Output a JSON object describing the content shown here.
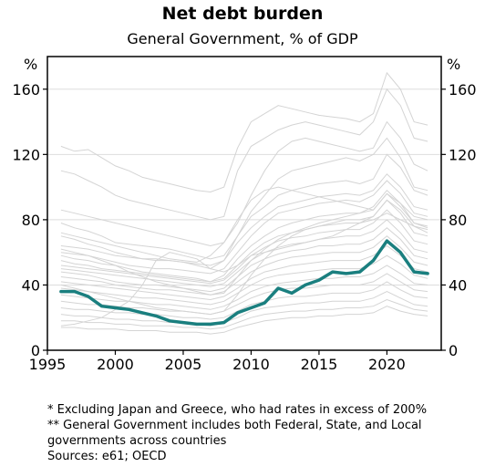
{
  "chart_data": {
    "type": "line",
    "title": "Net debt burden",
    "subtitle": "General Government, % of GDP",
    "ylabel_left": "%",
    "ylabel_right": "%",
    "xlim": [
      1995,
      2024
    ],
    "ylim": [
      0,
      180
    ],
    "x_ticks": [
      1995,
      2000,
      2005,
      2010,
      2015,
      2020
    ],
    "y_ticks": [
      0,
      40,
      80,
      120,
      160
    ],
    "grid": true,
    "colors": {
      "highlight": "#1a7f7f",
      "background_series": "#d4d4d4",
      "grid": "#dddddd",
      "axis": "#000000"
    },
    "x": [
      1996,
      1997,
      1998,
      1999,
      2000,
      2001,
      2002,
      2003,
      2004,
      2005,
      2006,
      2007,
      2008,
      2009,
      2010,
      2011,
      2012,
      2013,
      2014,
      2015,
      2016,
      2017,
      2018,
      2019,
      2020,
      2021,
      2022,
      2023
    ],
    "highlight_series": {
      "values": [
        36,
        36,
        33,
        27,
        26,
        25,
        23,
        21,
        18,
        17,
        16,
        16,
        17,
        23,
        26,
        29,
        38,
        35,
        40,
        43,
        48,
        47,
        48,
        55,
        67,
        60,
        48,
        47
      ]
    },
    "background_series": [
      {
        "values": [
          125,
          122,
          123,
          118,
          113,
          110,
          106,
          104,
          102,
          100,
          98,
          97,
          100,
          124,
          140,
          145,
          150,
          148,
          146,
          144,
          143,
          142,
          140,
          145,
          170,
          160,
          140,
          138
        ]
      },
      {
        "values": [
          110,
          108,
          104,
          100,
          95,
          92,
          90,
          88,
          86,
          84,
          82,
          80,
          82,
          110,
          125,
          130,
          135,
          138,
          140,
          138,
          136,
          134,
          132,
          140,
          160,
          150,
          130,
          128
        ]
      },
      {
        "values": [
          78,
          75,
          73,
          70,
          66,
          65,
          64,
          63,
          62,
          60,
          58,
          56,
          58,
          70,
          85,
          95,
          105,
          110,
          112,
          114,
          116,
          118,
          116,
          120,
          130,
          118,
          100,
          98
        ]
      },
      {
        "values": [
          70,
          68,
          65,
          63,
          60,
          58,
          56,
          55,
          55,
          54,
          52,
          50,
          55,
          70,
          82,
          88,
          95,
          98,
          100,
          102,
          103,
          104,
          102,
          105,
          120,
          112,
          98,
          95
        ]
      },
      {
        "values": [
          64,
          63,
          62,
          60,
          58,
          57,
          56,
          56,
          55,
          54,
          53,
          52,
          55,
          66,
          75,
          82,
          88,
          90,
          92,
          94,
          95,
          96,
          95,
          98,
          108,
          100,
          88,
          86
        ]
      },
      {
        "values": [
          60,
          59,
          58,
          56,
          54,
          52,
          51,
          50,
          50,
          49,
          48,
          47,
          50,
          60,
          70,
          78,
          84,
          86,
          88,
          90,
          91,
          92,
          91,
          95,
          104,
          96,
          84,
          82
        ]
      },
      {
        "values": [
          58,
          56,
          55,
          53,
          52,
          50,
          48,
          47,
          46,
          45,
          44,
          42,
          46,
          56,
          64,
          70,
          75,
          78,
          80,
          82,
          83,
          84,
          84,
          88,
          98,
          90,
          78,
          76
        ]
      },
      {
        "values": [
          55,
          53,
          52,
          50,
          49,
          48,
          47,
          46,
          45,
          44,
          43,
          42,
          44,
          52,
          60,
          66,
          70,
          72,
          74,
          76,
          77,
          78,
          78,
          82,
          92,
          84,
          72,
          70
        ]
      },
      {
        "values": [
          52,
          51,
          50,
          49,
          48,
          47,
          46,
          45,
          44,
          43,
          42,
          41,
          43,
          50,
          58,
          63,
          67,
          69,
          70,
          72,
          73,
          74,
          74,
          78,
          86,
          78,
          67,
          65
        ]
      },
      {
        "values": [
          50,
          49,
          48,
          47,
          46,
          45,
          44,
          43,
          42,
          41,
          40,
          39,
          41,
          48,
          55,
          60,
          63,
          65,
          66,
          68,
          69,
          70,
          70,
          73,
          80,
          72,
          62,
          60
        ]
      },
      {
        "values": [
          48,
          47,
          46,
          44,
          42,
          41,
          40,
          40,
          39,
          38,
          37,
          36,
          38,
          45,
          52,
          56,
          59,
          61,
          62,
          64,
          64,
          65,
          65,
          68,
          75,
          68,
          58,
          56
        ]
      },
      {
        "values": [
          45,
          44,
          43,
          42,
          40,
          39,
          38,
          37,
          37,
          36,
          35,
          34,
          36,
          42,
          48,
          52,
          55,
          57,
          58,
          59,
          60,
          60,
          60,
          63,
          70,
          63,
          54,
          52
        ]
      },
      {
        "values": [
          42,
          41,
          40,
          39,
          38,
          37,
          36,
          35,
          34,
          33,
          32,
          31,
          33,
          38,
          44,
          48,
          50,
          52,
          53,
          54,
          55,
          55,
          55,
          58,
          64,
          58,
          50,
          48
        ]
      },
      {
        "values": [
          38,
          37,
          36,
          35,
          34,
          33,
          32,
          32,
          31,
          30,
          29,
          28,
          30,
          35,
          40,
          44,
          46,
          47,
          48,
          49,
          50,
          50,
          50,
          53,
          58,
          53,
          46,
          44
        ]
      },
      {
        "values": [
          34,
          33,
          32,
          31,
          30,
          30,
          29,
          28,
          28,
          27,
          26,
          25,
          27,
          31,
          36,
          39,
          41,
          42,
          43,
          44,
          44,
          45,
          45,
          47,
          52,
          47,
          41,
          40
        ]
      },
      {
        "values": [
          30,
          29,
          28,
          28,
          27,
          26,
          26,
          25,
          24,
          24,
          23,
          22,
          24,
          28,
          32,
          35,
          37,
          38,
          38,
          39,
          40,
          40,
          40,
          42,
          47,
          42,
          37,
          36
        ]
      },
      {
        "values": [
          26,
          25,
          25,
          24,
          23,
          23,
          22,
          22,
          21,
          20,
          20,
          19,
          20,
          24,
          28,
          30,
          32,
          33,
          33,
          34,
          35,
          35,
          35,
          37,
          42,
          37,
          33,
          32
        ]
      },
      {
        "values": [
          22,
          21,
          21,
          20,
          19,
          19,
          18,
          18,
          17,
          17,
          16,
          15,
          17,
          20,
          24,
          26,
          27,
          28,
          29,
          29,
          30,
          30,
          30,
          32,
          36,
          32,
          28,
          27
        ]
      },
      {
        "values": [
          18,
          18,
          17,
          17,
          16,
          16,
          15,
          15,
          15,
          14,
          14,
          13,
          14,
          17,
          20,
          22,
          23,
          24,
          24,
          25,
          25,
          26,
          26,
          27,
          31,
          28,
          25,
          24
        ]
      },
      {
        "values": [
          14,
          14,
          13,
          13,
          13,
          12,
          12,
          12,
          11,
          11,
          11,
          10,
          11,
          14,
          16,
          18,
          19,
          20,
          20,
          21,
          21,
          22,
          22,
          23,
          27,
          24,
          22,
          21
        ]
      },
      {
        "values": [
          15,
          16,
          18,
          20,
          25,
          30,
          40,
          55,
          60,
          58,
          56,
          50,
          48,
          52,
          58,
          60,
          62,
          64,
          66,
          68,
          70,
          74,
          78,
          80,
          84,
          80,
          76,
          72
        ]
      },
      {
        "values": [
          72,
          70,
          68,
          66,
          64,
          62,
          60,
          58,
          56,
          55,
          54,
          58,
          66,
          80,
          92,
          98,
          100,
          98,
          96,
          94,
          92,
          90,
          88,
          86,
          96,
          90,
          82,
          80
        ]
      },
      {
        "values": [
          86,
          84,
          82,
          80,
          78,
          76,
          74,
          72,
          70,
          68,
          66,
          64,
          66,
          78,
          95,
          110,
          122,
          128,
          130,
          128,
          126,
          124,
          122,
          124,
          140,
          130,
          114,
          110
        ]
      },
      {
        "values": [
          62,
          60,
          58,
          55,
          52,
          48,
          45,
          42,
          40,
          38,
          36,
          34,
          35,
          45,
          55,
          62,
          68,
          72,
          75,
          78,
          80,
          82,
          84,
          86,
          96,
          88,
          78,
          75
        ]
      },
      {
        "values": [
          40,
          38,
          36,
          34,
          32,
          30,
          28,
          26,
          25,
          24,
          23,
          22,
          24,
          34,
          46,
          56,
          64,
          70,
          74,
          76,
          78,
          80,
          80,
          82,
          92,
          86,
          76,
          74
        ]
      }
    ]
  },
  "notes": [
    "* Excluding Japan and Greece, who had rates in excess of 200%",
    "** General Government includes both Federal, State, and Local",
    "governments across countries",
    "Sources: e61; OECD"
  ]
}
